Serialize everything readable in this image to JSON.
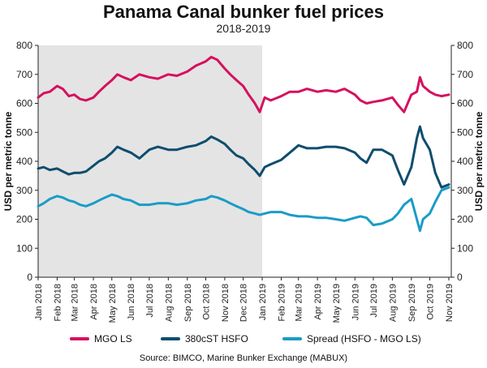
{
  "chart_data": {
    "type": "line",
    "title": "Panama Canal bunker fuel prices",
    "subtitle": "2018-2019",
    "ylabel_left": "USD per metric tonne",
    "ylabel_right": "USD per metric tonne",
    "ylim": [
      0,
      800
    ],
    "yticks": [
      0,
      100,
      200,
      300,
      400,
      500,
      600,
      700,
      800
    ],
    "x_start": "2018-01-01",
    "x_end": "2019-11-05",
    "x_tick_labels": [
      "Jan 2018",
      "Feb 2018",
      "Mar 2018",
      "Apr 2018",
      "May 2018",
      "Jun 2018",
      "Jul 2018",
      "Aug 2018",
      "Sep 2018",
      "Oct 2018",
      "Nov 2018",
      "Dec 2018",
      "Jan 2019",
      "Feb 2019",
      "Mar 2019",
      "Apr 2019",
      "May 2019",
      "Jun 2019",
      "Jul 2019",
      "Aug 2019",
      "Sep 2019",
      "Oct 2019",
      "Nov 2019"
    ],
    "shaded_region": {
      "from": "2018-01-01",
      "to": "2019-01-01",
      "color": "#e4e4e4"
    },
    "grid": false,
    "legend_position": "bottom",
    "series": [
      {
        "name": "MGO LS",
        "color": "#d6105e",
        "x": [
          "2018-01-01",
          "2018-01-10",
          "2018-01-20",
          "2018-02-01",
          "2018-02-10",
          "2018-02-20",
          "2018-03-01",
          "2018-03-10",
          "2018-03-20",
          "2018-04-01",
          "2018-04-10",
          "2018-04-20",
          "2018-05-01",
          "2018-05-10",
          "2018-05-20",
          "2018-06-01",
          "2018-06-15",
          "2018-07-01",
          "2018-07-15",
          "2018-08-01",
          "2018-08-15",
          "2018-09-01",
          "2018-09-15",
          "2018-10-01",
          "2018-10-10",
          "2018-10-20",
          "2018-11-01",
          "2018-11-10",
          "2018-11-20",
          "2018-12-01",
          "2018-12-10",
          "2018-12-20",
          "2018-12-28",
          "2019-01-05",
          "2019-01-15",
          "2019-02-01",
          "2019-02-15",
          "2019-03-01",
          "2019-03-15",
          "2019-04-01",
          "2019-04-15",
          "2019-05-01",
          "2019-05-15",
          "2019-06-01",
          "2019-06-10",
          "2019-06-20",
          "2019-07-01",
          "2019-07-15",
          "2019-08-01",
          "2019-08-10",
          "2019-08-20",
          "2019-09-01",
          "2019-09-10",
          "2019-09-15",
          "2019-09-20",
          "2019-10-01",
          "2019-10-10",
          "2019-10-20",
          "2019-11-01"
        ],
        "values": [
          620,
          635,
          640,
          660,
          650,
          625,
          630,
          615,
          610,
          620,
          640,
          660,
          680,
          700,
          690,
          680,
          700,
          690,
          685,
          700,
          695,
          710,
          730,
          745,
          760,
          750,
          720,
          700,
          680,
          660,
          630,
          600,
          570,
          620,
          610,
          625,
          640,
          640,
          650,
          640,
          645,
          640,
          650,
          630,
          610,
          600,
          605,
          610,
          620,
          595,
          570,
          630,
          640,
          690,
          660,
          640,
          630,
          625,
          630
        ]
      },
      {
        "name": "380cST HSFO",
        "color": "#0e4d6e",
        "x": [
          "2018-01-01",
          "2018-01-10",
          "2018-01-20",
          "2018-02-01",
          "2018-02-10",
          "2018-02-20",
          "2018-03-01",
          "2018-03-10",
          "2018-03-20",
          "2018-04-01",
          "2018-04-10",
          "2018-04-20",
          "2018-05-01",
          "2018-05-10",
          "2018-05-20",
          "2018-06-01",
          "2018-06-15",
          "2018-07-01",
          "2018-07-15",
          "2018-08-01",
          "2018-08-15",
          "2018-09-01",
          "2018-09-15",
          "2018-10-01",
          "2018-10-10",
          "2018-10-20",
          "2018-11-01",
          "2018-11-10",
          "2018-11-20",
          "2018-12-01",
          "2018-12-10",
          "2018-12-20",
          "2018-12-28",
          "2019-01-05",
          "2019-01-15",
          "2019-02-01",
          "2019-02-15",
          "2019-03-01",
          "2019-03-15",
          "2019-04-01",
          "2019-04-15",
          "2019-05-01",
          "2019-05-15",
          "2019-06-01",
          "2019-06-10",
          "2019-06-20",
          "2019-07-01",
          "2019-07-15",
          "2019-08-01",
          "2019-08-10",
          "2019-08-20",
          "2019-09-01",
          "2019-09-10",
          "2019-09-15",
          "2019-09-20",
          "2019-10-01",
          "2019-10-10",
          "2019-10-20",
          "2019-11-01"
        ],
        "values": [
          375,
          380,
          370,
          375,
          365,
          355,
          360,
          360,
          365,
          385,
          400,
          410,
          430,
          450,
          440,
          430,
          410,
          440,
          450,
          440,
          440,
          450,
          455,
          470,
          485,
          475,
          460,
          440,
          420,
          410,
          390,
          370,
          350,
          380,
          390,
          405,
          430,
          455,
          445,
          445,
          450,
          450,
          445,
          430,
          410,
          395,
          440,
          440,
          420,
          370,
          320,
          380,
          480,
          520,
          480,
          440,
          360,
          310,
          320
        ]
      },
      {
        "name": "Spread (HSFO - MGO LS)",
        "color": "#1a9cc6",
        "x": [
          "2018-01-01",
          "2018-01-10",
          "2018-01-20",
          "2018-02-01",
          "2018-02-10",
          "2018-02-20",
          "2018-03-01",
          "2018-03-10",
          "2018-03-20",
          "2018-04-01",
          "2018-04-10",
          "2018-04-20",
          "2018-05-01",
          "2018-05-10",
          "2018-05-20",
          "2018-06-01",
          "2018-06-15",
          "2018-07-01",
          "2018-07-15",
          "2018-08-01",
          "2018-08-15",
          "2018-09-01",
          "2018-09-15",
          "2018-10-01",
          "2018-10-10",
          "2018-10-20",
          "2018-11-01",
          "2018-11-10",
          "2018-11-20",
          "2018-12-01",
          "2018-12-10",
          "2018-12-20",
          "2018-12-28",
          "2019-01-05",
          "2019-01-15",
          "2019-02-01",
          "2019-02-15",
          "2019-03-01",
          "2019-03-15",
          "2019-04-01",
          "2019-04-15",
          "2019-05-01",
          "2019-05-15",
          "2019-06-01",
          "2019-06-10",
          "2019-06-20",
          "2019-07-01",
          "2019-07-15",
          "2019-08-01",
          "2019-08-10",
          "2019-08-20",
          "2019-09-01",
          "2019-09-10",
          "2019-09-15",
          "2019-09-20",
          "2019-10-01",
          "2019-10-10",
          "2019-10-20",
          "2019-11-01"
        ],
        "values": [
          245,
          255,
          270,
          280,
          275,
          265,
          260,
          250,
          245,
          255,
          265,
          275,
          285,
          280,
          270,
          265,
          250,
          250,
          255,
          255,
          250,
          255,
          265,
          270,
          280,
          275,
          265,
          255,
          245,
          235,
          225,
          220,
          215,
          220,
          225,
          225,
          215,
          210,
          210,
          205,
          205,
          200,
          195,
          205,
          210,
          205,
          180,
          185,
          200,
          220,
          250,
          270,
          200,
          160,
          200,
          220,
          260,
          300,
          310
        ]
      }
    ]
  },
  "source": "Source: BIMCO, Marine Bunker Exchange (MABUX)"
}
